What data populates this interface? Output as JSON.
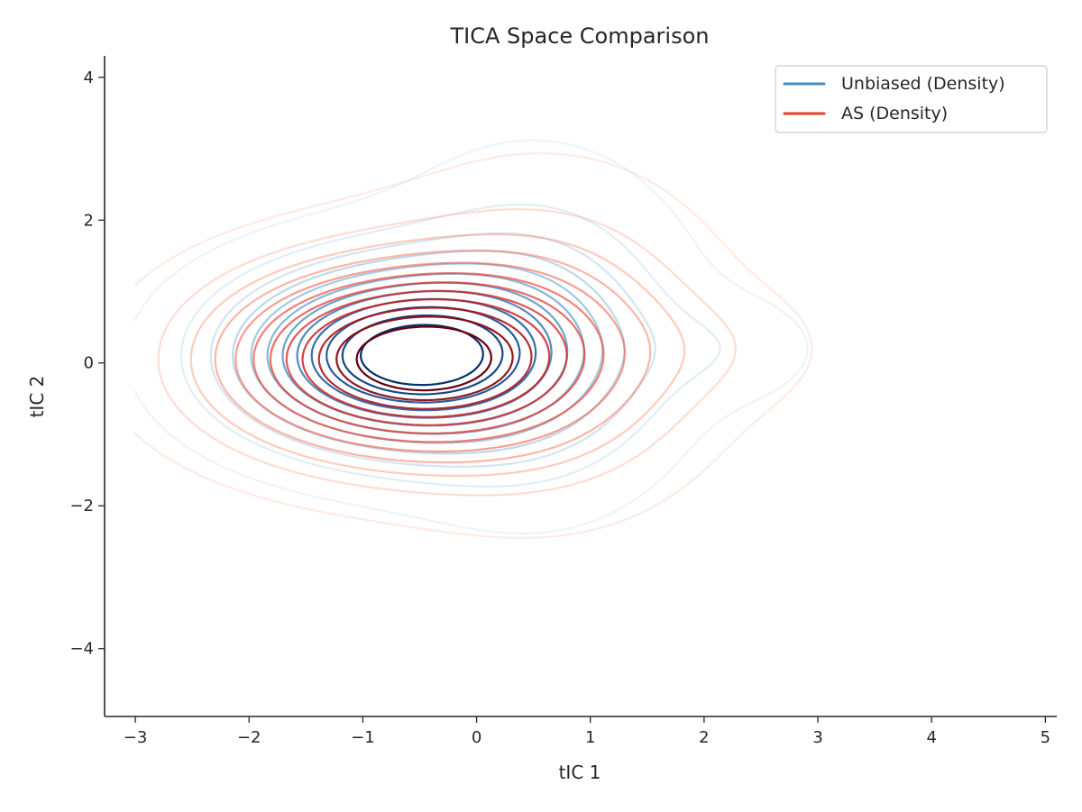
{
  "chart_data": {
    "type": "contour",
    "title": "TICA Space Comparison",
    "xlabel": "tIC 1",
    "ylabel": "tIC 2",
    "xlim": [
      -3.27,
      5.1
    ],
    "ylim": [
      -4.95,
      4.3
    ],
    "xticks": [
      -3,
      -2,
      -1,
      0,
      1,
      2,
      3,
      4,
      5
    ],
    "yticks": [
      -4,
      -2,
      0,
      2,
      4
    ],
    "xtick_labels": [
      "−3",
      "−2",
      "−1",
      "0",
      "1",
      "2",
      "3",
      "4",
      "5"
    ],
    "ytick_labels": [
      "−4",
      "−2",
      "0",
      "2",
      "4"
    ],
    "grid": false,
    "legend_position": "top-right",
    "series": [
      {
        "name": "Unbiased (Density)",
        "colormap": "Blues",
        "legend_color": "#3f8fc5",
        "levels": 12,
        "components": [
          {
            "cx": -0.65,
            "cy": 0.1,
            "sx": 0.95,
            "sy": 0.8,
            "w": 1.0
          },
          {
            "cx": 0.5,
            "cy": 0.4,
            "sx": 0.8,
            "sy": 1.4,
            "w": 0.25
          },
          {
            "cx": 2.2,
            "cy": 0.2,
            "sx": 0.55,
            "sy": 0.5,
            "w": 0.08
          }
        ]
      },
      {
        "name": "AS (Density)",
        "colormap": "Reds",
        "legend_color": "#e3422f",
        "levels": 12,
        "components": [
          {
            "cx": -0.65,
            "cy": 0.05,
            "sx": 1.05,
            "sy": 0.85,
            "w": 1.0
          },
          {
            "cx": 0.6,
            "cy": 0.3,
            "sx": 0.9,
            "sy": 1.35,
            "w": 0.25
          },
          {
            "cx": 2.2,
            "cy": 0.2,
            "sx": 0.6,
            "sy": 0.55,
            "w": 0.06
          }
        ]
      }
    ]
  }
}
